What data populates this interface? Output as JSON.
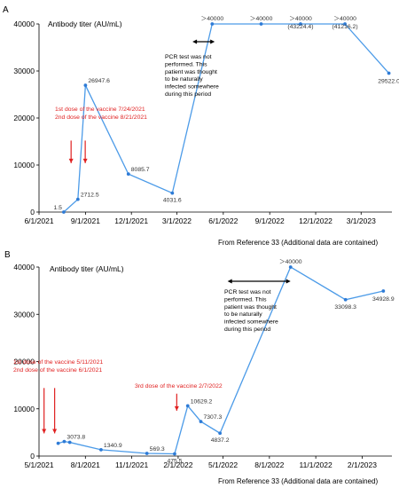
{
  "panels": [
    {
      "panel_label": "A",
      "ylabel": "Antibody titer (AU/mL)",
      "source_note": "From Reference 33 (Additional data are contained)",
      "annotations": {
        "vaccine_text": [
          "1st dose of the vaccine 7/24/2021",
          "2nd dose of the vaccine 8/21/2021"
        ],
        "pcr_text": [
          "PCR test was not",
          "performed. This",
          "patient was thought",
          "to be naturally",
          "infected somewhere",
          "during this period"
        ]
      }
    },
    {
      "panel_label": "B",
      "ylabel": "Antibody titer (AU/mL)",
      "source_note": "From Reference 33 (Additional data are contained)",
      "annotations": {
        "vaccine_text": [
          "1st dose of the vaccine 5/11/2021",
          "2nd dose of the vaccine 6/1/2021"
        ],
        "third_dose_text": "3rd dose of the vaccine 2/7/2022",
        "pcr_text": [
          "PCR test was not",
          "performed. This",
          "patient was thought",
          "to be naturally",
          "infected somewhere",
          "during this period"
        ]
      }
    }
  ],
  "chart_data": [
    {
      "type": "line",
      "panel": "A",
      "ylabel": "Antibody titer (AU/mL)",
      "ylim": [
        0,
        40000
      ],
      "yticks": [
        0,
        10000,
        20000,
        30000,
        40000
      ],
      "ytick_labels": [
        "0",
        "10000",
        "20000",
        "30000",
        "40000"
      ],
      "xlim": [
        "2021-06-01",
        "2023-05-01"
      ],
      "xticks": [
        "2021-06-01",
        "2021-09-01",
        "2021-12-01",
        "2022-03-01",
        "2022-06-01",
        "2022-09-01",
        "2022-12-01",
        "2023-03-01"
      ],
      "xtick_labels": [
        "6/1/2021",
        "9/1/2021",
        "12/1/2021",
        "3/1/2022",
        "6/1/2022",
        "9/1/2022",
        "12/1/2022",
        "3/1/2023"
      ],
      "line_color": "#4c9be8",
      "marker_color": "#2e7bd6",
      "points": [
        {
          "x": "2021-07-20",
          "y": 1.5,
          "label": "1.5"
        },
        {
          "x": "2021-08-17",
          "y": 2712.5,
          "label": "2712.5"
        },
        {
          "x": "2021-09-01",
          "y": 26947.6,
          "label": "26947.6"
        },
        {
          "x": "2021-11-25",
          "y": 8085.7,
          "label": "8085.7"
        },
        {
          "x": "2022-02-20",
          "y": 4031.6,
          "label": "4031.6"
        },
        {
          "x": "2022-05-10",
          "y": 40000,
          "label": "＞40000"
        },
        {
          "x": "2022-08-15",
          "y": 40000,
          "label": "＞40000"
        },
        {
          "x": "2022-11-01",
          "y": 40000,
          "label": "＞40000",
          "sublabel": "(43224.4)"
        },
        {
          "x": "2023-01-28",
          "y": 40000,
          "label": "＞40000",
          "sublabel": "(41216.2)"
        },
        {
          "x": "2023-04-25",
          "y": 29522.0,
          "label": "29522.0"
        }
      ],
      "vaccine_doses": [
        "2021-07-24",
        "2021-08-21"
      ],
      "infection_period": [
        "2022-04-01",
        "2022-05-15"
      ],
      "legend": "none",
      "grid": false
    },
    {
      "type": "line",
      "panel": "B",
      "ylabel": "Antibody titer (AU/mL)",
      "ylim": [
        0,
        40000
      ],
      "yticks": [
        0,
        10000,
        20000,
        30000,
        40000
      ],
      "ytick_labels": [
        "0",
        "10000",
        "20000",
        "30000",
        "40000"
      ],
      "xlim": [
        "2021-05-01",
        "2023-04-01"
      ],
      "xticks": [
        "2021-05-01",
        "2021-08-01",
        "2021-11-01",
        "2022-02-01",
        "2022-05-01",
        "2022-08-01",
        "2022-11-01",
        "2023-02-01"
      ],
      "xtick_labels": [
        "5/1/2021",
        "8/1/2021",
        "11/1/2021",
        "2/1/2022",
        "5/1/2022",
        "8/1/2022",
        "11/1/2022",
        "2/1/2023"
      ],
      "line_color": "#4c9be8",
      "marker_color": "#2e7bd6",
      "points": [
        {
          "x": "2021-06-08",
          "y": 2700,
          "label": ""
        },
        {
          "x": "2021-06-20",
          "y": 3073.8,
          "label": "3073.8"
        },
        {
          "x": "2021-07-01",
          "y": 2900,
          "label": ""
        },
        {
          "x": "2021-09-01",
          "y": 1340.9,
          "label": "1340.9"
        },
        {
          "x": "2021-12-01",
          "y": 569.3,
          "label": "569.3"
        },
        {
          "x": "2022-01-25",
          "y": 475.5,
          "label": "475.5"
        },
        {
          "x": "2022-02-20",
          "y": 10629.2,
          "label": "10629.2"
        },
        {
          "x": "2022-03-18",
          "y": 7307.3,
          "label": "7307.3"
        },
        {
          "x": "2022-04-25",
          "y": 4837.2,
          "label": "4837.2"
        },
        {
          "x": "2022-09-12",
          "y": 40000,
          "label": "＞40000"
        },
        {
          "x": "2022-12-30",
          "y": 33098.3,
          "label": "33098.3"
        },
        {
          "x": "2023-03-15",
          "y": 34928.9,
          "label": "34928.9"
        }
      ],
      "vaccine_doses": [
        "2021-05-11",
        "2021-06-01"
      ],
      "third_dose": "2022-02-07",
      "infection_period": [
        "2022-05-10",
        "2022-09-12"
      ],
      "legend": "none",
      "grid": false
    }
  ]
}
